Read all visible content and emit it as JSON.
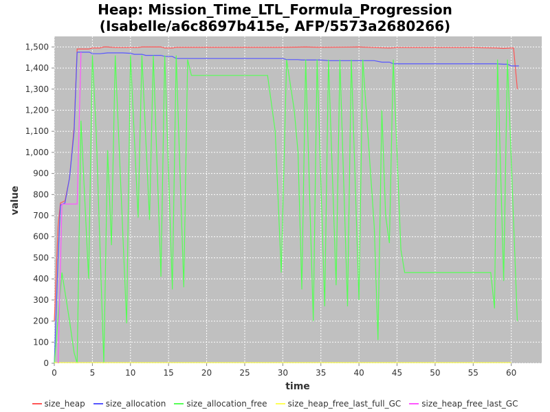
{
  "chart_data": {
    "type": "line",
    "title_line1": "Heap: Mission_Time_LTL_Formula_Progression",
    "title_line2": "(Isabelle/a6c8697b415e, AFP/5573a2680266)",
    "xlabel": "time",
    "ylabel": "value",
    "xlim": [
      0,
      64
    ],
    "ylim": [
      0,
      1550
    ],
    "xticks": [
      "0",
      "5",
      "10",
      "15",
      "20",
      "25",
      "30",
      "35",
      "40",
      "45",
      "50",
      "55",
      "60"
    ],
    "yticks": [
      "0",
      "100",
      "200",
      "300",
      "400",
      "500",
      "600",
      "700",
      "800",
      "900",
      "1,000",
      "1,100",
      "1,200",
      "1,300",
      "1,400",
      "1,500"
    ],
    "grid": true,
    "legend_position": "bottom",
    "colors": {
      "plot_bg": "#c0c0c0",
      "grid": "#ffffff"
    },
    "series": [
      {
        "name": "size_heap",
        "color": "#ff5555",
        "points": [
          [
            0,
            200
          ],
          [
            0.5,
            650
          ],
          [
            0.8,
            760
          ],
          [
            1.4,
            770
          ],
          [
            2,
            880
          ],
          [
            2.6,
            1120
          ],
          [
            3,
            1490
          ],
          [
            4,
            1490
          ],
          [
            4.5,
            1490
          ],
          [
            5,
            1495
          ],
          [
            6,
            1495
          ],
          [
            6.5,
            1500
          ],
          [
            7,
            1500
          ],
          [
            8,
            1497
          ],
          [
            9,
            1497
          ],
          [
            10,
            1497
          ],
          [
            11,
            1497
          ],
          [
            11.5,
            1500
          ],
          [
            13,
            1500
          ],
          [
            14,
            1500
          ],
          [
            14.5,
            1495
          ],
          [
            15.5,
            1495
          ],
          [
            16,
            1498
          ],
          [
            20,
            1498
          ],
          [
            25,
            1498
          ],
          [
            30,
            1498
          ],
          [
            33,
            1500
          ],
          [
            35,
            1498
          ],
          [
            40,
            1500
          ],
          [
            42,
            1497
          ],
          [
            44,
            1495
          ],
          [
            45,
            1497
          ],
          [
            50,
            1497
          ],
          [
            55,
            1497
          ],
          [
            58,
            1495
          ],
          [
            59,
            1493
          ],
          [
            60,
            1495
          ],
          [
            60.3,
            1495
          ],
          [
            60.8,
            1300
          ]
        ]
      },
      {
        "name": "size_allocation",
        "color": "#5555ff",
        "points": [
          [
            0,
            0
          ],
          [
            0.5,
            500
          ],
          [
            0.8,
            750
          ],
          [
            1.4,
            760
          ],
          [
            2,
            880
          ],
          [
            2.6,
            1100
          ],
          [
            3,
            1475
          ],
          [
            4,
            1475
          ],
          [
            4.6,
            1475
          ],
          [
            5,
            1468
          ],
          [
            6,
            1468
          ],
          [
            7,
            1472
          ],
          [
            8,
            1472
          ],
          [
            9,
            1472
          ],
          [
            10,
            1470
          ],
          [
            10.5,
            1465
          ],
          [
            11.5,
            1465
          ],
          [
            12,
            1460
          ],
          [
            14,
            1460
          ],
          [
            14.5,
            1455
          ],
          [
            15.5,
            1455
          ],
          [
            16,
            1445
          ],
          [
            20,
            1445
          ],
          [
            25,
            1445
          ],
          [
            30,
            1445
          ],
          [
            30.5,
            1440
          ],
          [
            32,
            1440
          ],
          [
            32.5,
            1438
          ],
          [
            35,
            1438
          ],
          [
            36,
            1435
          ],
          [
            40,
            1435
          ],
          [
            42,
            1435
          ],
          [
            43,
            1428
          ],
          [
            44,
            1428
          ],
          [
            44.5,
            1420
          ],
          [
            50,
            1420
          ],
          [
            55,
            1420
          ],
          [
            58,
            1420
          ],
          [
            59,
            1418
          ],
          [
            59.5,
            1418
          ],
          [
            60,
            1410
          ],
          [
            61,
            1410
          ]
        ]
      },
      {
        "name": "size_allocation_free",
        "color": "#55ff55",
        "points": [
          [
            0,
            0
          ],
          [
            1,
            430
          ],
          [
            2,
            200
          ],
          [
            2.6,
            50
          ],
          [
            3,
            0
          ],
          [
            3.5,
            1150
          ],
          [
            4.5,
            400
          ],
          [
            5,
            1460
          ],
          [
            5.5,
            1100
          ],
          [
            6.5,
            0
          ],
          [
            7,
            1010
          ],
          [
            7.5,
            560
          ],
          [
            8,
            1460
          ],
          [
            9.5,
            190
          ],
          [
            10,
            1460
          ],
          [
            11,
            690
          ],
          [
            11.5,
            1460
          ],
          [
            12.5,
            680
          ],
          [
            13,
            1460
          ],
          [
            14,
            410
          ],
          [
            14.5,
            1460
          ],
          [
            15.5,
            350
          ],
          [
            16,
            1460
          ],
          [
            17,
            360
          ],
          [
            17.5,
            1440
          ],
          [
            18,
            1365
          ],
          [
            20,
            1365
          ],
          [
            25,
            1365
          ],
          [
            28,
            1365
          ],
          [
            29,
            1100
          ],
          [
            29.8,
            430
          ],
          [
            30.5,
            1440
          ],
          [
            31.5,
            1200
          ],
          [
            32,
            1000
          ],
          [
            32.5,
            350
          ],
          [
            33,
            1440
          ],
          [
            34,
            200
          ],
          [
            34.5,
            1440
          ],
          [
            35.5,
            270
          ],
          [
            36,
            1440
          ],
          [
            37,
            370
          ],
          [
            37.5,
            1440
          ],
          [
            38.5,
            270
          ],
          [
            39,
            1440
          ],
          [
            40,
            300
          ],
          [
            40.5,
            1440
          ],
          [
            42,
            650
          ],
          [
            42.5,
            110
          ],
          [
            43,
            1200
          ],
          [
            43.5,
            700
          ],
          [
            44,
            570
          ],
          [
            44.5,
            1440
          ],
          [
            45.5,
            540
          ],
          [
            46,
            430
          ],
          [
            50,
            430
          ],
          [
            55,
            430
          ],
          [
            57.3,
            430
          ],
          [
            57.8,
            260
          ],
          [
            58.2,
            1440
          ],
          [
            59,
            390
          ],
          [
            59.5,
            1440
          ],
          [
            60.8,
            200
          ]
        ]
      },
      {
        "name": "size_heap_free_last_full_GC",
        "color": "#ffff55",
        "points": [
          [
            0,
            3
          ],
          [
            60,
            3
          ]
        ]
      },
      {
        "name": "size_heap_free_last_GC",
        "color": "#ff55ff",
        "points": [
          [
            0.5,
            0
          ],
          [
            1,
            755
          ],
          [
            3,
            755
          ],
          [
            3.5,
            1475
          ]
        ]
      }
    ]
  }
}
